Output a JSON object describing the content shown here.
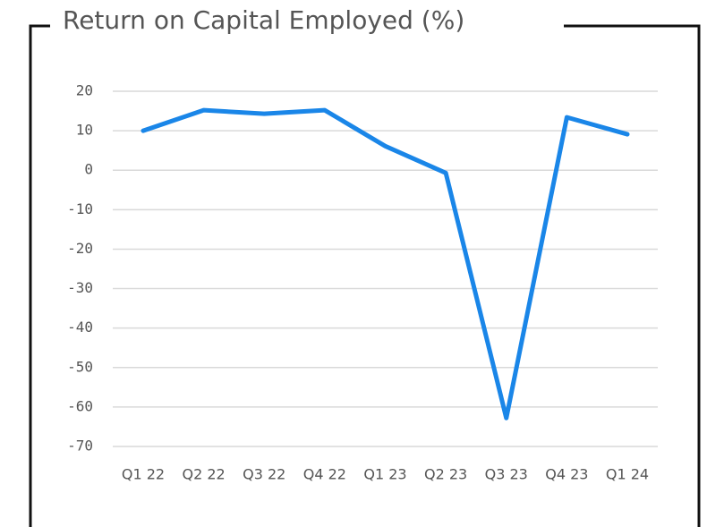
{
  "chart_data": {
    "type": "line",
    "title": "Return on Capital Employed (%)",
    "categories": [
      "Q1 22",
      "Q2 22",
      "Q3 22",
      "Q4 22",
      "Q1 23",
      "Q2 23",
      "Q3 23",
      "Q4 23",
      "Q1 24"
    ],
    "series": [
      {
        "name": "ROCE",
        "color": "#1a86e8",
        "values": [
          10.0,
          15.2,
          14.3,
          15.2,
          6.1,
          -0.7,
          -62.8,
          13.4,
          9.1
        ]
      }
    ],
    "ylim": [
      -70,
      20
    ],
    "yticks": [
      -70,
      -60,
      -50,
      -40,
      -30,
      -20,
      -10,
      0,
      10,
      20
    ],
    "grid": true
  }
}
